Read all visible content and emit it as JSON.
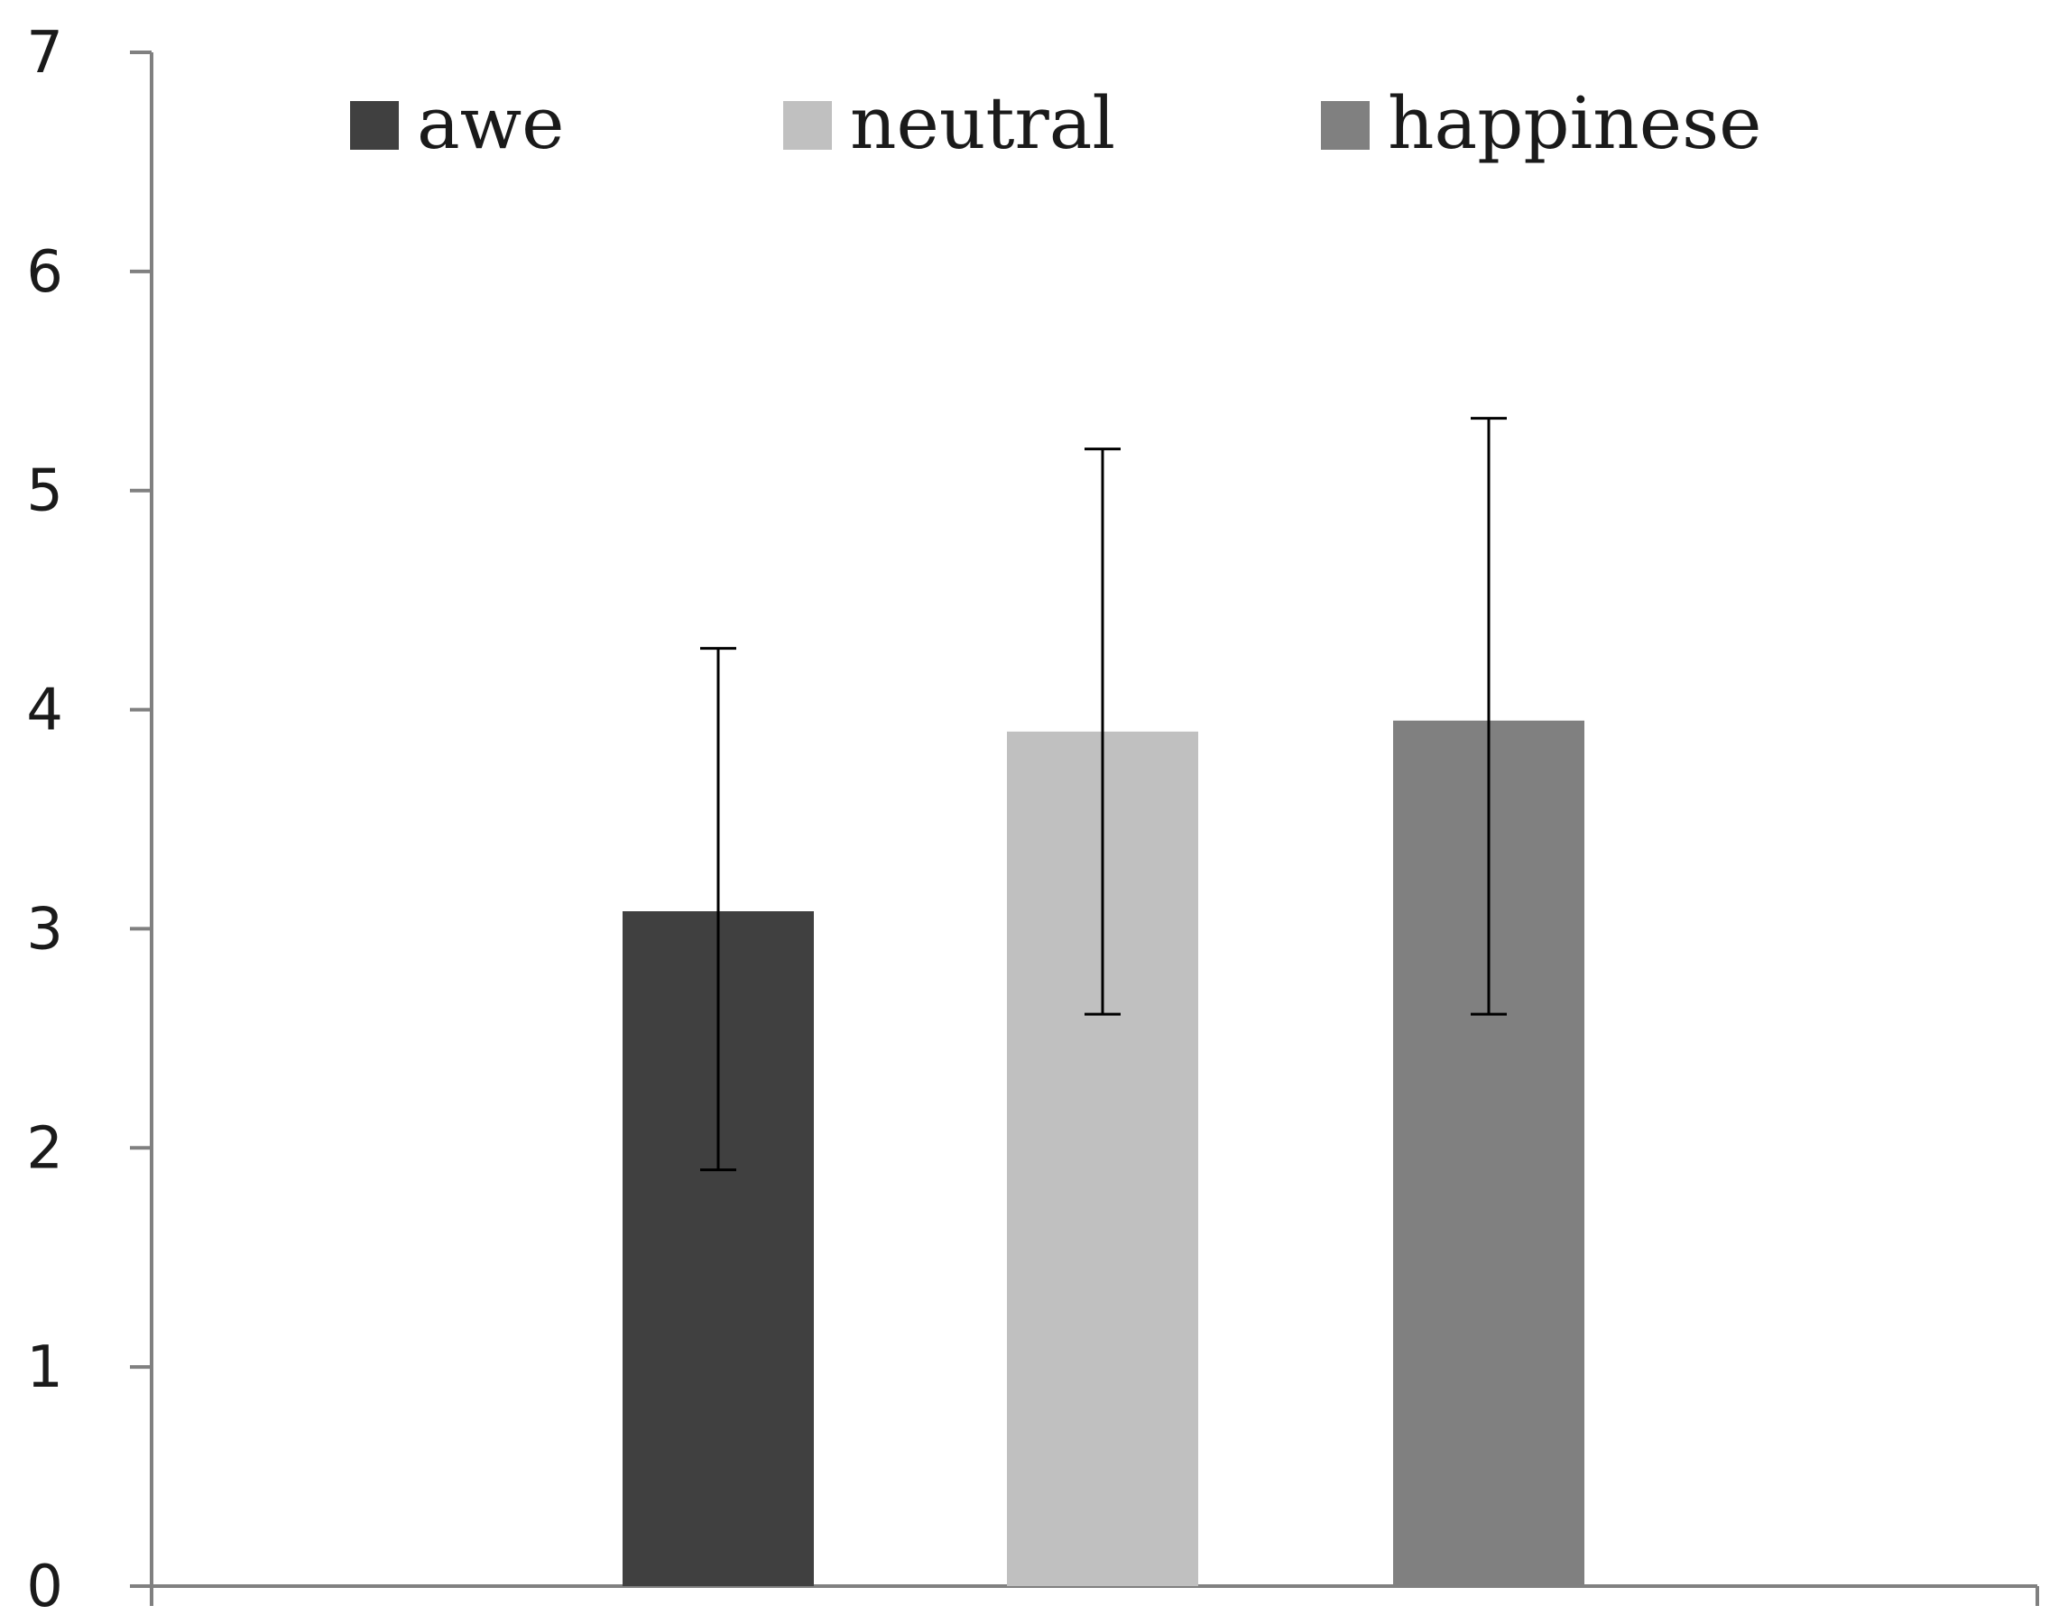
{
  "chart_data": {
    "type": "bar",
    "title": "",
    "xlabel": "",
    "ylabel": "",
    "categories": [
      ""
    ],
    "series": [
      {
        "name": "awe",
        "values": [
          3.08
        ],
        "error_low": [
          1.9
        ],
        "error_high": [
          4.28
        ],
        "color": "#404040"
      },
      {
        "name": "neutral",
        "values": [
          3.9
        ],
        "error_low": [
          2.61
        ],
        "error_high": [
          5.19
        ],
        "color": "#c0c0c0"
      },
      {
        "name": "happinese",
        "values": [
          3.95
        ],
        "error_low": [
          2.61
        ],
        "error_high": [
          5.33
        ],
        "color": "#808080"
      }
    ],
    "ylim": [
      0,
      7
    ],
    "yticks": [
      "0",
      "1",
      "2",
      "3",
      "4",
      "5",
      "6",
      "7"
    ],
    "grid": false,
    "legend_position": "top",
    "axis_color": "#808080",
    "error_bar_color": "#000000"
  }
}
